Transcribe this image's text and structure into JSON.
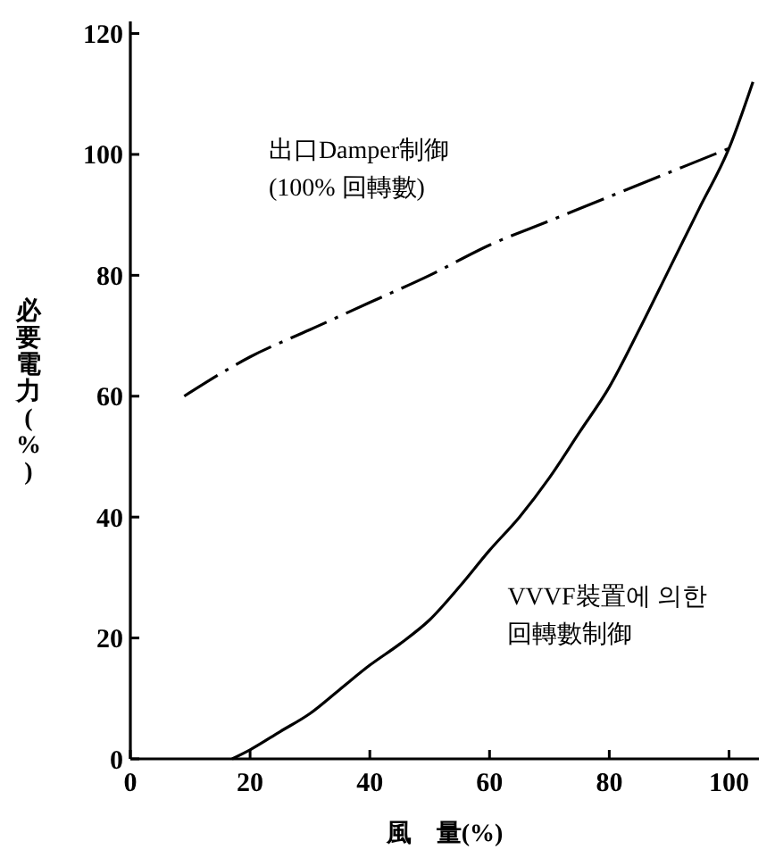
{
  "chart_data": {
    "type": "line",
    "xlabel": "風　量(%)",
    "ylabel": "必要電力(%)",
    "xlim": [
      0,
      105
    ],
    "ylim": [
      0,
      122
    ],
    "xticks": [
      0,
      20,
      40,
      60,
      80,
      100
    ],
    "yticks": [
      0,
      20,
      40,
      60,
      80,
      100,
      120
    ],
    "grid": false,
    "legend": false,
    "marker": "none",
    "series": [
      {
        "name": "出口Damper制御\n(100% 回轉數)",
        "color": "#000000",
        "line_style": "dashed",
        "x": [
          9,
          20,
          30,
          40,
          50,
          60,
          70,
          80,
          90,
          100
        ],
        "values": [
          60,
          66.5,
          71,
          75.5,
          80,
          85,
          89,
          93,
          97,
          101
        ]
      },
      {
        "name": "VVVF裝置에 의한\n回轉數制御",
        "color": "#000000",
        "line_style": "solid",
        "x": [
          17,
          20,
          25,
          30,
          35,
          40,
          45,
          50,
          55,
          60,
          65,
          70,
          75,
          80,
          85,
          90,
          95,
          100,
          104
        ],
        "values": [
          0,
          1.5,
          4.5,
          7.5,
          11.5,
          15.5,
          19,
          23,
          28.5,
          34.5,
          40,
          46.5,
          54,
          61.5,
          71,
          81,
          91,
          101,
          112
        ]
      }
    ]
  }
}
